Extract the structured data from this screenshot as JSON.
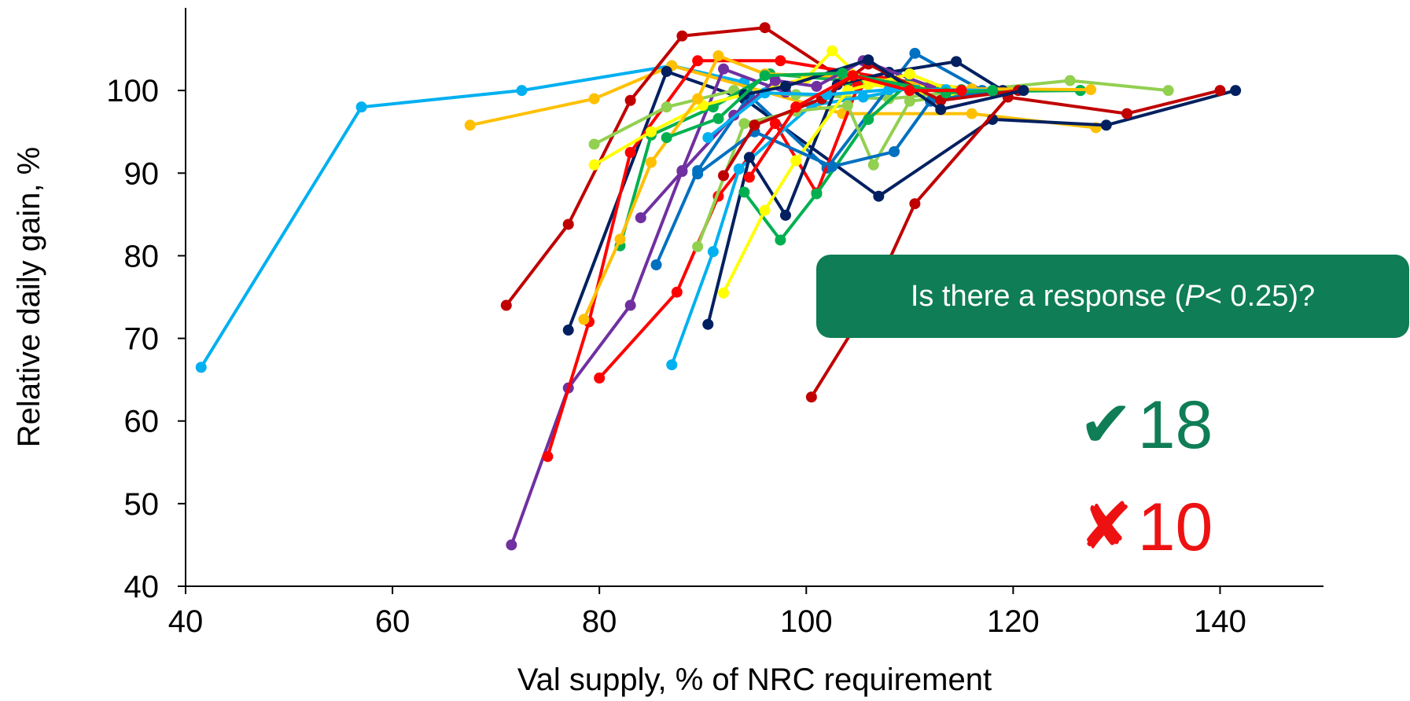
{
  "chart_data": {
    "type": "line",
    "xlabel": "Val supply, % of NRC requirement",
    "ylabel": "Relative daily gain, %",
    "xlim": [
      40,
      150
    ],
    "ylim": [
      40,
      110
    ],
    "xticks": [
      40,
      60,
      80,
      100,
      120,
      140
    ],
    "yticks": [
      40,
      50,
      60,
      70,
      80,
      90,
      100
    ],
    "grid": false,
    "series": [
      {
        "color": "#00b0f0",
        "x": [
          41.5,
          57,
          72.5,
          87,
          94
        ],
        "y": [
          66.5,
          98,
          100,
          103,
          101
        ]
      },
      {
        "color": "#ffc000",
        "x": [
          67.5,
          79.5,
          87,
          103.5,
          116,
          128
        ],
        "y": [
          95.8,
          99,
          103,
          97.2,
          97.2,
          95.5
        ]
      },
      {
        "color": "#c00000",
        "x": [
          71,
          77,
          83,
          88,
          96,
          104,
          114
        ],
        "y": [
          74,
          83.8,
          98.8,
          106.6,
          107.6,
          101,
          100
        ]
      },
      {
        "color": "#002060",
        "x": [
          77,
          86.5,
          94,
          107,
          118,
          129,
          141.5
        ],
        "y": [
          71,
          102.3,
          99,
          87.2,
          96.5,
          95.8,
          100
        ]
      },
      {
        "color": "#7030a0",
        "x": [
          71.5,
          77,
          83,
          88,
          92,
          98
        ],
        "y": [
          45,
          64,
          74,
          90.3,
          102.6,
          99.8
        ]
      },
      {
        "color": "#ff0000",
        "x": [
          75,
          79,
          83,
          89.5,
          97.5,
          115
        ],
        "y": [
          55.7,
          72,
          92.5,
          103.6,
          103.6,
          100
        ]
      },
      {
        "color": "#92d050",
        "x": [
          79.5,
          86.5,
          93,
          99,
          108,
          125.5,
          135
        ],
        "y": [
          93.5,
          98,
          100,
          99.5,
          99,
          101.2,
          100
        ]
      },
      {
        "color": "#00b050",
        "x": [
          82,
          85,
          91,
          96.5,
          104,
          115,
          126.5
        ],
        "y": [
          81.2,
          94.6,
          98,
          102,
          101.2,
          100.1,
          100
        ]
      },
      {
        "color": "#ffff00",
        "x": [
          79.5,
          85,
          90,
          100,
          102.5,
          106,
          111
        ],
        "y": [
          91,
          95,
          98.2,
          101.5,
          104.8,
          100.7,
          100.1
        ]
      },
      {
        "color": "#0070c0",
        "x": [
          85.5,
          89.5,
          94.5,
          102,
          110.5,
          117
        ],
        "y": [
          78.9,
          90.3,
          99.4,
          90.6,
          104.5,
          100
        ]
      },
      {
        "color": "#c00000",
        "x": [
          100.5,
          106,
          110.5,
          119.5,
          131,
          140
        ],
        "y": [
          62.9,
          74,
          86.3,
          99.2,
          97.2,
          100
        ]
      },
      {
        "color": "#ff0000",
        "x": [
          80,
          87.5,
          91.5,
          97,
          101,
          105
        ],
        "y": [
          65.2,
          75.6,
          87.2,
          96,
          87.6,
          100.5
        ]
      },
      {
        "color": "#00b0f0",
        "x": [
          87,
          91,
          93.5,
          100.5,
          105.5,
          110.5
        ],
        "y": [
          66.8,
          80.5,
          90.5,
          98.2,
          99.2,
          100.4
        ]
      },
      {
        "color": "#002060",
        "x": [
          90.5,
          94.5,
          98,
          103,
          108,
          114.5,
          119
        ],
        "y": [
          71.7,
          91.9,
          84.9,
          100.7,
          102.2,
          103.5,
          100
        ]
      },
      {
        "color": "#00b050",
        "x": [
          94,
          97.5,
          101,
          106,
          110,
          118,
          126.5
        ],
        "y": [
          87.7,
          81.9,
          87.5,
          96.5,
          101,
          99.9,
          100
        ]
      },
      {
        "color": "#ffc000",
        "x": [
          78.5,
          82,
          85,
          89.5,
          91.5,
          96,
          104,
          116,
          127.5
        ],
        "y": [
          72.3,
          82,
          91.3,
          99,
          104.2,
          102,
          101.7,
          100.2,
          100.1
        ]
      },
      {
        "color": "#7030a0",
        "x": [
          84,
          88,
          93,
          97,
          101,
          105.5,
          112
        ],
        "y": [
          84.6,
          90.2,
          97,
          101.2,
          100.5,
          103.6,
          100.5
        ]
      },
      {
        "color": "#92d050",
        "x": [
          89.5,
          94,
          99,
          104,
          106.5,
          110,
          118
        ],
        "y": [
          81.1,
          96,
          97.5,
          98.2,
          91,
          98.7,
          100
        ]
      },
      {
        "color": "#ffff00",
        "x": [
          92,
          96,
          99,
          104,
          110,
          114
        ],
        "y": [
          75.5,
          85.5,
          91.5,
          100,
          102,
          100
        ]
      },
      {
        "color": "#0070c0",
        "x": [
          89.5,
          95,
          102.5,
          108.5,
          112,
          118
        ],
        "y": [
          89.9,
          95,
          90.8,
          92.6,
          98.7,
          100
        ]
      },
      {
        "color": "#c00000",
        "x": [
          92,
          95,
          101.5,
          106,
          113,
          120.5
        ],
        "y": [
          89.7,
          95.8,
          99,
          103.2,
          98.8,
          100
        ]
      },
      {
        "color": "#00b0f0",
        "x": [
          90.5,
          96,
          102,
          108,
          113.5,
          118
        ],
        "y": [
          94.3,
          99.7,
          99.5,
          100.1,
          100.1,
          100
        ]
      },
      {
        "color": "#002060",
        "x": [
          94,
          98,
          106,
          113,
          121
        ],
        "y": [
          99.5,
          100.5,
          103.7,
          97.7,
          100
        ]
      },
      {
        "color": "#00b050",
        "x": [
          86.5,
          91.5,
          96,
          103.5,
          113.5,
          118
        ],
        "y": [
          94.3,
          96.6,
          101.8,
          102.1,
          99.7,
          100
        ]
      },
      {
        "color": "#ff0000",
        "x": [
          94.5,
          99,
          104.5,
          110,
          115
        ],
        "y": [
          89.5,
          98,
          101.8,
          100,
          100
        ]
      }
    ]
  },
  "callout": {
    "prefix": "Is there a response (",
    "italic": "P",
    "suffix": " < 0.25)?"
  },
  "counts": {
    "yes_count": "18",
    "no_count": "10",
    "yes_icon": "check-icon",
    "no_icon": "cross-icon",
    "yes_color": "#0f7d55",
    "no_color": "#ee1111"
  }
}
